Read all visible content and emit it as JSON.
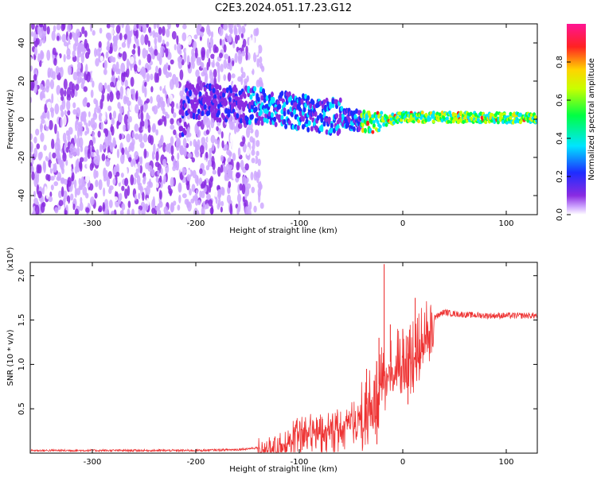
{
  "title": "C2E3.2024.051.17.23.G12",
  "chart_data": [
    {
      "type": "heatmap",
      "xlabel": "Height of straight line (km)",
      "ylabel": "Frequency (Hz)",
      "xlim": [
        -360,
        130
      ],
      "ylim": [
        -50,
        50
      ],
      "xticks": [
        -300,
        -200,
        -100,
        0,
        100
      ],
      "yticks": [
        -40,
        -20,
        0,
        20,
        40
      ],
      "colorbar": {
        "label": "Normalized spectral amplitude",
        "range": [
          0,
          1
        ],
        "ticks": [
          "0.0",
          "0.2",
          "0.4",
          "0.6",
          "0.8"
        ],
        "colors": [
          "#ffffff",
          "#cfa8ff",
          "#8a2be2",
          "#1e2cff",
          "#00e5ff",
          "#00ff44",
          "#c8ff00",
          "#ffd400",
          "#ff2222",
          "#ff1493"
        ]
      },
      "features": {
        "noise_region_x": [
          -360,
          -150
        ],
        "beam_start_x": -215,
        "beam_center_freq": [
          {
            "x": -210,
            "y": 10
          },
          {
            "x": -140,
            "y": 7
          },
          {
            "x": -100,
            "y": 4
          },
          {
            "x": -60,
            "y": 1
          },
          {
            "x": -30,
            "y": -2
          },
          {
            "x": 0,
            "y": 1
          },
          {
            "x": 60,
            "y": 1
          },
          {
            "x": 130,
            "y": 0.5
          }
        ]
      },
      "grid": false
    },
    {
      "type": "line",
      "xlabel": "Height of straight line (km)",
      "ylabel": "SNR (10 * v/v)",
      "scale_label": "(x10⁴)",
      "xlim": [
        -360,
        130
      ],
      "ylim": [
        0,
        2.15
      ],
      "xticks": [
        -300,
        -200,
        -100,
        0,
        100
      ],
      "yticks": [
        0.5,
        1.0,
        1.5,
        2.0
      ],
      "ytick_labels": [
        "0.5",
        "1.0",
        "1.5",
        "2.0"
      ],
      "series": [
        {
          "color": "#ee3333",
          "points": [
            {
              "x": -360,
              "y": 0.03
            },
            {
              "x": -300,
              "y": 0.03
            },
            {
              "x": -250,
              "y": 0.03
            },
            {
              "x": -200,
              "y": 0.03
            },
            {
              "x": -160,
              "y": 0.04
            },
            {
              "x": -140,
              "y": 0.06
            },
            {
              "x": -120,
              "y": 0.1
            },
            {
              "x": -110,
              "y": 0.2
            },
            {
              "x": -100,
              "y": 0.3
            },
            {
              "x": -90,
              "y": 0.33
            },
            {
              "x": -80,
              "y": 0.3
            },
            {
              "x": -70,
              "y": 0.35
            },
            {
              "x": -60,
              "y": 0.38
            },
            {
              "x": -50,
              "y": 0.42
            },
            {
              "x": -40,
              "y": 0.45
            },
            {
              "x": -30,
              "y": 0.65
            },
            {
              "x": -25,
              "y": 0.7
            },
            {
              "x": -20,
              "y": 0.9
            },
            {
              "x": -15,
              "y": 1.0
            },
            {
              "x": -10,
              "y": 1.05
            },
            {
              "x": 0,
              "y": 1.1
            },
            {
              "x": 10,
              "y": 1.15
            },
            {
              "x": 20,
              "y": 1.35
            },
            {
              "x": 30,
              "y": 1.52
            },
            {
              "x": 40,
              "y": 1.59
            },
            {
              "x": 50,
              "y": 1.57
            },
            {
              "x": 60,
              "y": 1.56
            },
            {
              "x": 80,
              "y": 1.55
            },
            {
              "x": 100,
              "y": 1.55
            },
            {
              "x": 130,
              "y": 1.55
            }
          ],
          "spikes": [
            {
              "x": -18,
              "y": 2.13
            },
            {
              "x": -23,
              "y": 1.3
            },
            {
              "x": 12,
              "y": 1.75
            },
            {
              "x": -12,
              "y": 1.45
            },
            {
              "x": 0,
              "y": 1.4
            },
            {
              "x": -35,
              "y": 0.95
            },
            {
              "x": 5,
              "y": 0.55
            },
            {
              "x": -25,
              "y": 0.1
            }
          ]
        }
      ],
      "grid": false
    }
  ]
}
